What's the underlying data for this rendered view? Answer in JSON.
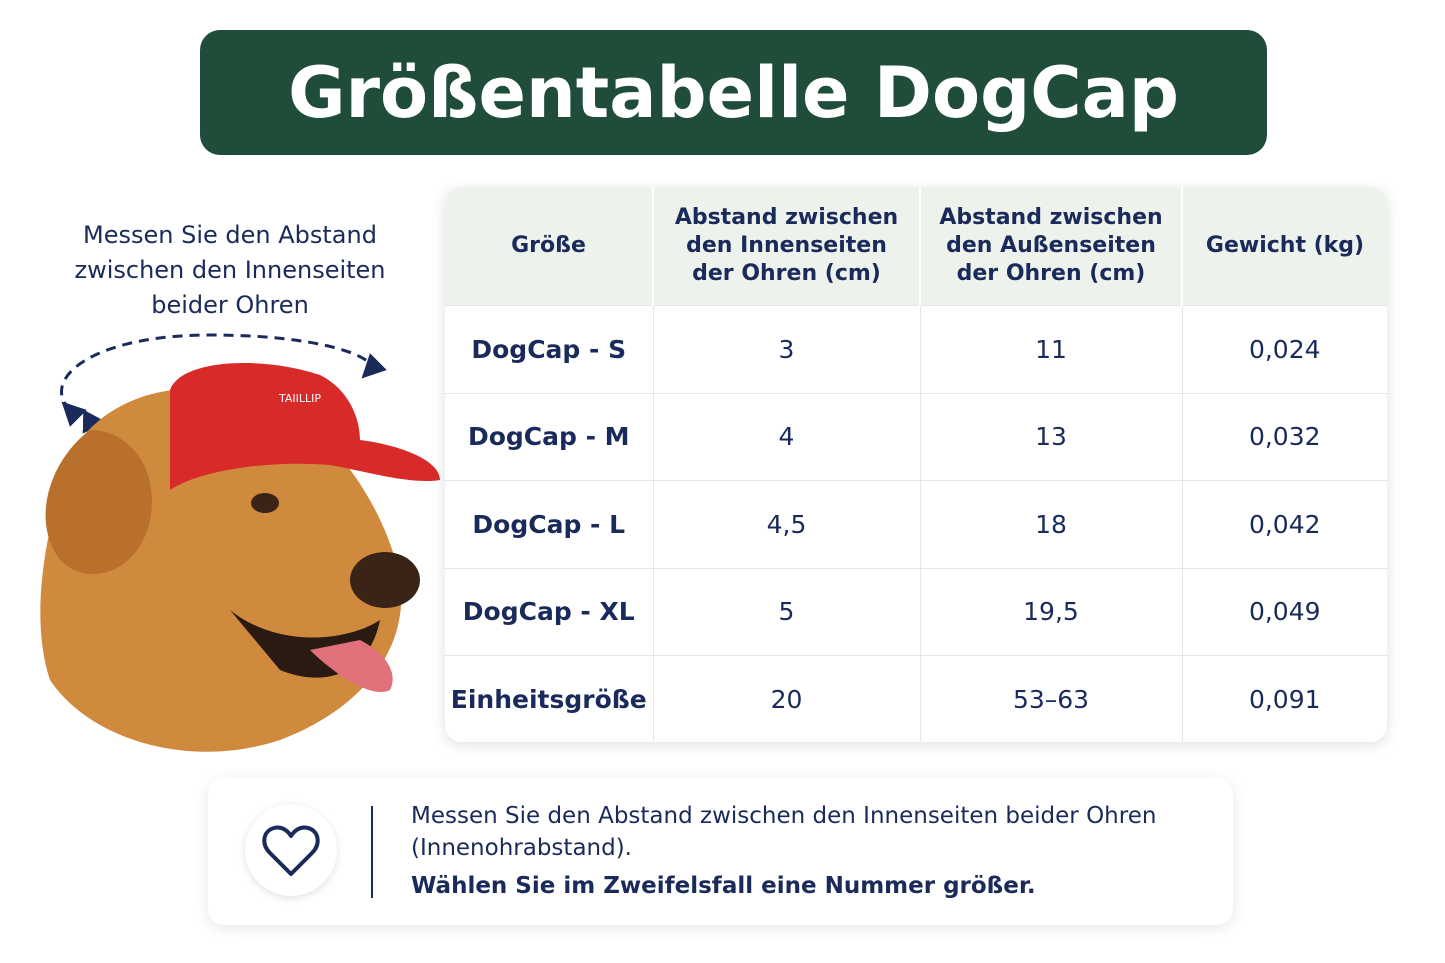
{
  "header": {
    "title": "Größentabelle DogCap"
  },
  "instruction": {
    "lines": [
      "Messen Sie den Abstand",
      "zwischen den Innenseiten",
      "beider Ohren"
    ]
  },
  "image": {
    "cap_text": "TAIILLIP"
  },
  "table": {
    "headers": [
      [
        "Größe"
      ],
      [
        "Abstand zwischen",
        "den Innenseiten",
        "der Ohren (cm)"
      ],
      [
        "Abstand zwischen",
        "den Außenseiten",
        "der Ohren (cm)"
      ],
      [
        "Gewicht (kg)"
      ]
    ],
    "rows": [
      [
        "DogCap - S",
        "3",
        "11",
        "0,024"
      ],
      [
        "DogCap - M",
        "4",
        "13",
        "0,032"
      ],
      [
        "DogCap - L",
        "4,5",
        "18",
        "0,042"
      ],
      [
        "DogCap - XL",
        "5",
        "19,5",
        "0,049"
      ],
      [
        "Einheitsgröße",
        "20",
        "53–63",
        "0,091"
      ]
    ]
  },
  "note": {
    "text": "Messen Sie den Abstand zwischen den Innenseiten beider Ohren (Innenohrabstand).",
    "bold": "Wählen Sie im Zweifelsfall eine Nummer größer."
  }
}
